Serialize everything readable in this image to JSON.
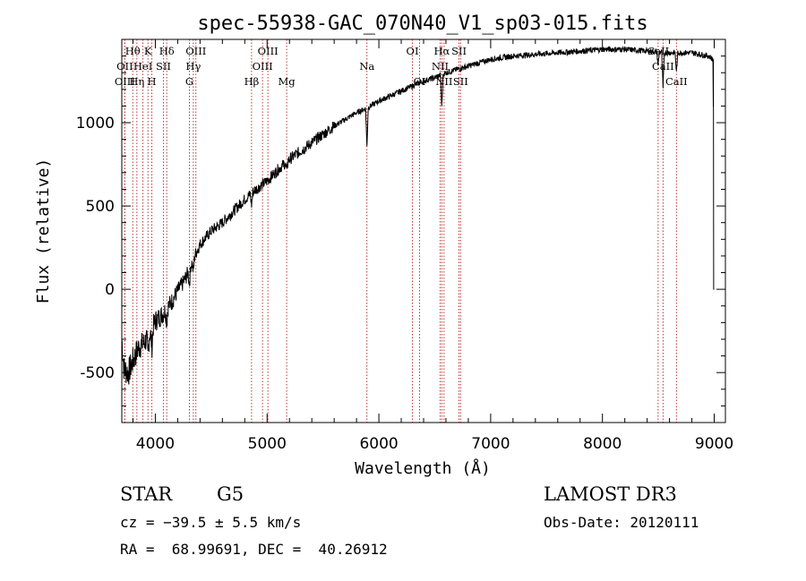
{
  "chart_data": {
    "type": "line",
    "title": "spec-55938-GAC_070N40_V1_sp03-015.fits",
    "xlabel": "Wavelength (Å)",
    "ylabel": "Flux (relative)",
    "xlim": [
      3700,
      9100
    ],
    "ylim": [
      -800,
      1500
    ],
    "x_ticks": [
      4000,
      5000,
      6000,
      7000,
      8000,
      9000
    ],
    "y_ticks": [
      -500,
      0,
      500,
      1000
    ],
    "series": [
      {
        "name": "spectrum",
        "anchors": [
          [
            3700,
            -300
          ],
          [
            3720,
            -480
          ],
          [
            3760,
            -500
          ],
          [
            3800,
            -430
          ],
          [
            3850,
            -350
          ],
          [
            3900,
            -320
          ],
          [
            3960,
            -260
          ],
          [
            4000,
            -190
          ],
          [
            4050,
            -160
          ],
          [
            4100,
            -120
          ],
          [
            4150,
            -70
          ],
          [
            4200,
            -10
          ],
          [
            4250,
            40
          ],
          [
            4300,
            110
          ],
          [
            4350,
            200
          ],
          [
            4400,
            270
          ],
          [
            4500,
            350
          ],
          [
            4600,
            400
          ],
          [
            4700,
            470
          ],
          [
            4800,
            540
          ],
          [
            4900,
            600
          ],
          [
            5000,
            650
          ],
          [
            5100,
            720
          ],
          [
            5200,
            780
          ],
          [
            5300,
            830
          ],
          [
            5400,
            880
          ],
          [
            5500,
            930
          ],
          [
            5600,
            980
          ],
          [
            5700,
            1020
          ],
          [
            5800,
            1060
          ],
          [
            5900,
            1090
          ],
          [
            6000,
            1130
          ],
          [
            6100,
            1160
          ],
          [
            6200,
            1190
          ],
          [
            6300,
            1220
          ],
          [
            6400,
            1250
          ],
          [
            6500,
            1270
          ],
          [
            6600,
            1300
          ],
          [
            6700,
            1320
          ],
          [
            6800,
            1340
          ],
          [
            6900,
            1360
          ],
          [
            7000,
            1380
          ],
          [
            7200,
            1400
          ],
          [
            7400,
            1410
          ],
          [
            7600,
            1420
          ],
          [
            7800,
            1430
          ],
          [
            8000,
            1440
          ],
          [
            8200,
            1440
          ],
          [
            8400,
            1430
          ],
          [
            8600,
            1420
          ],
          [
            8800,
            1420
          ],
          [
            8950,
            1400
          ],
          [
            8990,
            1380
          ],
          [
            9000,
            0
          ]
        ],
        "absorption": [
          {
            "x": 3934,
            "depth": 120
          },
          {
            "x": 3969,
            "depth": 110
          },
          {
            "x": 4102,
            "depth": 80
          },
          {
            "x": 4305,
            "depth": 90
          },
          {
            "x": 4340,
            "depth": 80
          },
          {
            "x": 4861,
            "depth": 70
          },
          {
            "x": 5175,
            "depth": 60
          },
          {
            "x": 5893,
            "depth": 230
          },
          {
            "x": 6563,
            "depth": 200
          },
          {
            "x": 8498,
            "depth": 80
          },
          {
            "x": 8542,
            "depth": 220
          },
          {
            "x": 8662,
            "depth": 120
          }
        ]
      }
    ],
    "lines": [
      {
        "x": 3727,
        "label": "OII",
        "row": 1
      },
      {
        "x": 3727,
        "label": "OIII",
        "row": 2
      },
      {
        "x": 3798,
        "label": "Hθ",
        "row": 0
      },
      {
        "x": 3835,
        "label": "Hη",
        "row": 2
      },
      {
        "x": 3889,
        "label": "HeI",
        "row": 1
      },
      {
        "x": 3934,
        "label": "K",
        "row": 0
      },
      {
        "x": 3969,
        "label": "H",
        "row": 2
      },
      {
        "x": 4072,
        "label": "SII",
        "row": 1
      },
      {
        "x": 4102,
        "label": "Hδ",
        "row": 0
      },
      {
        "x": 4305,
        "label": "G",
        "row": 2
      },
      {
        "x": 4340,
        "label": "Hγ",
        "row": 1
      },
      {
        "x": 4363,
        "label": "OIII",
        "row": 0
      },
      {
        "x": 4861,
        "label": "Hβ",
        "row": 2
      },
      {
        "x": 4959,
        "label": "OIII",
        "row": 1
      },
      {
        "x": 5007,
        "label": "OIII",
        "row": 0
      },
      {
        "x": 5175,
        "label": "Mg",
        "row": 2
      },
      {
        "x": 5893,
        "label": "Na",
        "row": 1
      },
      {
        "x": 6300,
        "label": "OI",
        "row": 0
      },
      {
        "x": 6364,
        "label": "OI",
        "row": 2
      },
      {
        "x": 6548,
        "label": "NII",
        "row": 1
      },
      {
        "x": 6563,
        "label": "Hα",
        "row": 0
      },
      {
        "x": 6583,
        "label": "NII",
        "row": 2
      },
      {
        "x": 6717,
        "label": "SII",
        "row": 0
      },
      {
        "x": 6731,
        "label": "SII",
        "row": 2
      },
      {
        "x": 8498,
        "label": "CaII",
        "row": 0
      },
      {
        "x": 8542,
        "label": "CaII",
        "row": 1
      },
      {
        "x": 8662,
        "label": "CaII",
        "row": 2
      }
    ]
  },
  "info": {
    "object_class": "STAR",
    "subclass": "G5",
    "survey": "LAMOST DR3",
    "cz": "cz = −39.5 ± 5.5 km/s",
    "obs_date": "Obs-Date: 20120111",
    "coords": "RA =  68.99691, DEC =  40.26912"
  }
}
